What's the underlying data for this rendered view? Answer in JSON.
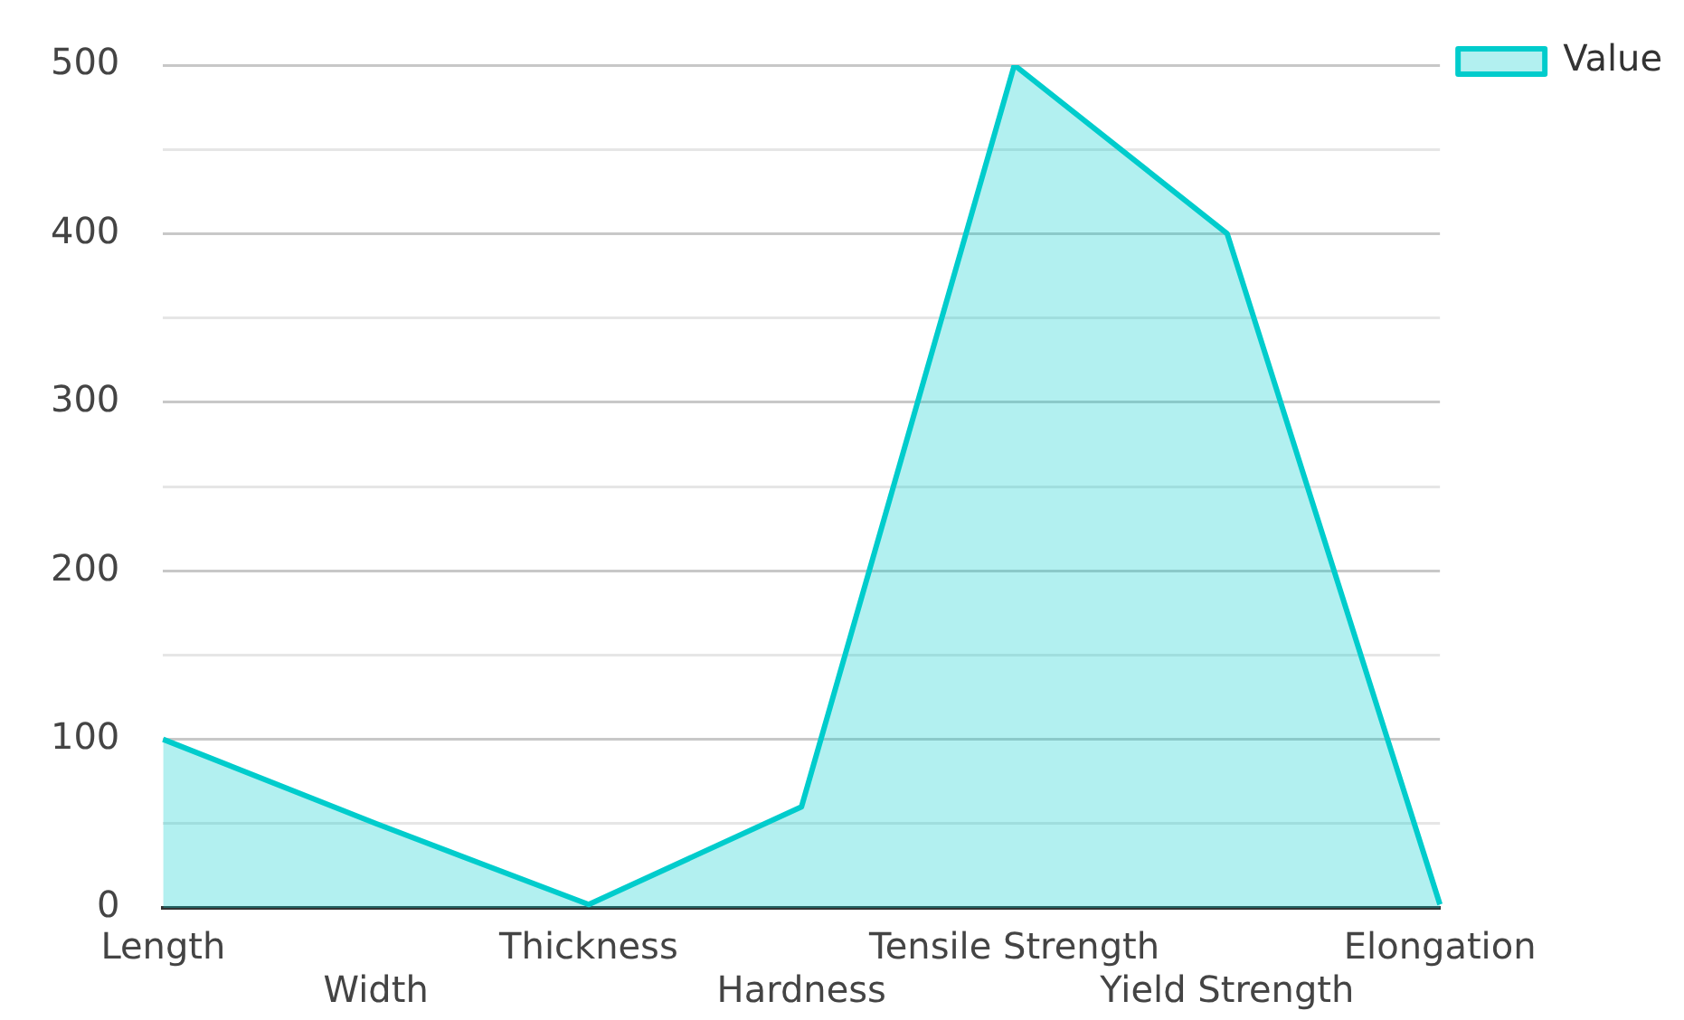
{
  "chart_data": {
    "type": "area",
    "categories": [
      "Length",
      "Width",
      "Thickness",
      "Hardness",
      "Tensile Strength",
      "Yield Strength",
      "Elongation"
    ],
    "series": [
      {
        "name": "Value",
        "color": "#00cccc",
        "values": [
          100,
          50,
          2,
          60,
          500,
          400,
          2
        ]
      }
    ],
    "ylim": [
      0,
      500
    ],
    "yticks": [
      0,
      {
        "value": 50,
        "label": null
      },
      100,
      {
        "value": 150,
        "label": null
      },
      200,
      {
        "value": 250,
        "label": null
      },
      300,
      {
        "value": 350,
        "label": null
      },
      400,
      {
        "value": 450,
        "label": null
      },
      500
    ],
    "grid": "y",
    "legend": "top right",
    "marker": "none",
    "line_style": "solid"
  }
}
